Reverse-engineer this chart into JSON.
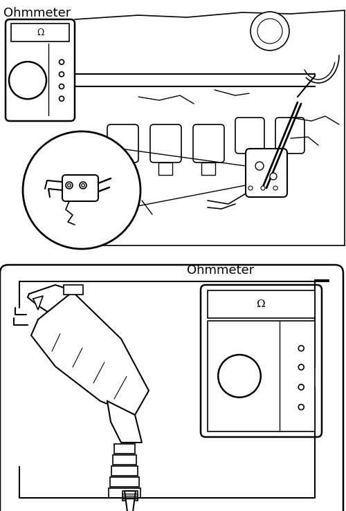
{
  "background_color": "#ffffff",
  "line_color": "#000000",
  "top_label": "Ohmmeter",
  "bottom_label": "Ohmmeter",
  "fig_width": 5.0,
  "fig_height": 7.39,
  "dpi": 100
}
